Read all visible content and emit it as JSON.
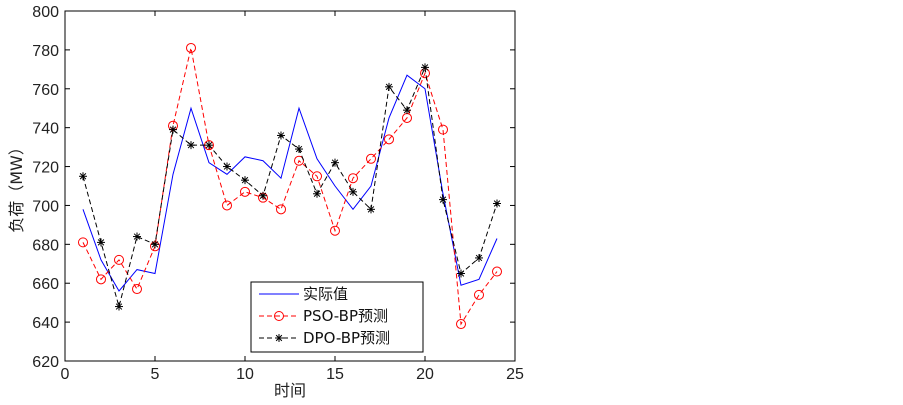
{
  "chart_data": {
    "type": "line",
    "xlabel": "时间",
    "ylabel": "负荷（MW）",
    "xlim": [
      0,
      25
    ],
    "ylim": [
      620,
      800
    ],
    "xticks": [
      0,
      5,
      10,
      15,
      20,
      25
    ],
    "yticks": [
      620,
      640,
      660,
      680,
      700,
      720,
      740,
      760,
      780,
      800
    ],
    "grid": false,
    "legend_position": "bottom-center",
    "x": [
      1,
      2,
      3,
      4,
      5,
      6,
      7,
      8,
      9,
      10,
      11,
      12,
      13,
      14,
      15,
      16,
      17,
      18,
      19,
      20,
      21,
      22,
      23,
      24
    ],
    "series": [
      {
        "name": "实际值",
        "color": "#0000ff",
        "line_style": "solid",
        "marker": "none",
        "values": [
          698,
          672,
          656,
          667,
          665,
          716,
          750,
          722,
          716,
          725,
          723,
          714,
          750,
          724,
          710,
          698,
          710,
          745,
          767,
          760,
          706,
          659,
          662,
          683
        ]
      },
      {
        "name": "PSO-BP预测",
        "color": "#ff0000",
        "line_style": "dashed",
        "marker": "circle",
        "values": [
          681,
          662,
          672,
          657,
          679,
          741,
          781,
          731,
          700,
          707,
          704,
          698,
          723,
          715,
          687,
          714,
          724,
          734,
          745,
          768,
          739,
          639,
          654,
          666
        ]
      },
      {
        "name": "DPO-BP预测",
        "color": "#000000",
        "line_style": "dashed",
        "marker": "star",
        "values": [
          715,
          681,
          648,
          684,
          680,
          739,
          731,
          731,
          720,
          713,
          705,
          736,
          729,
          706,
          722,
          707,
          698,
          761,
          749,
          771,
          703,
          665,
          673,
          701
        ]
      }
    ]
  }
}
